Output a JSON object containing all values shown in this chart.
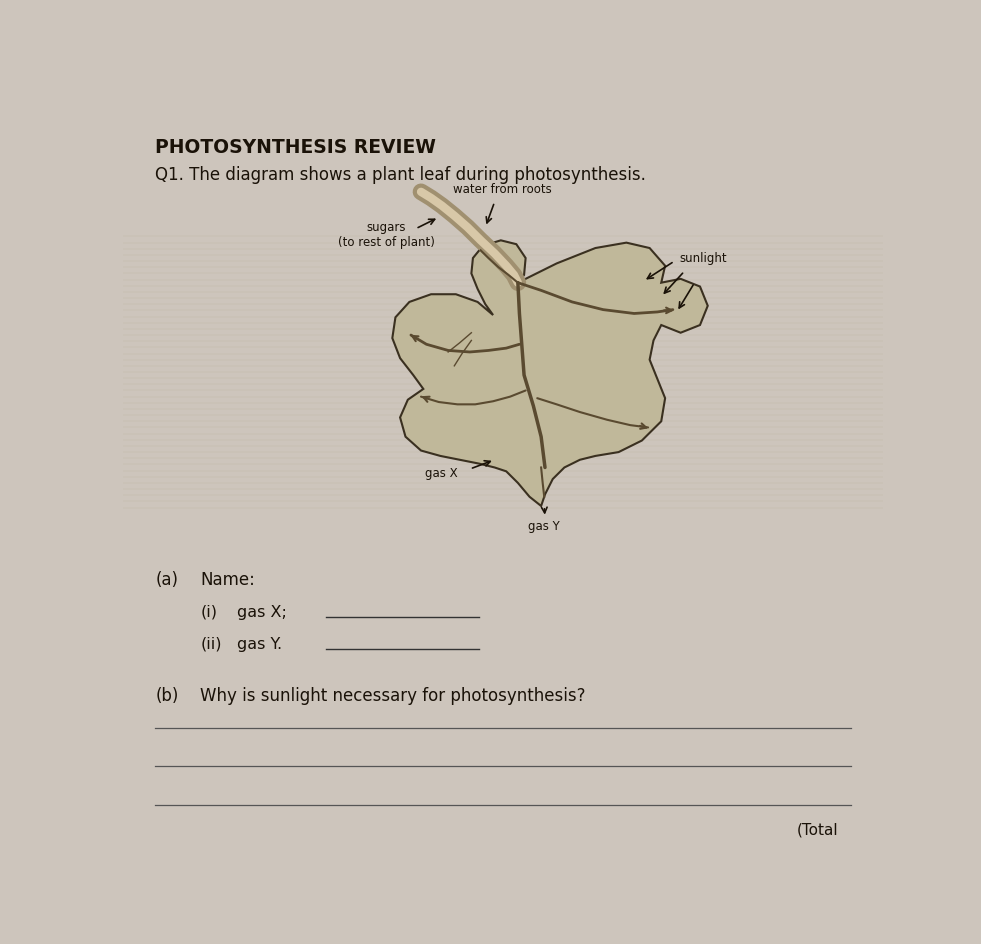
{
  "bg_color": "#cdc5bc",
  "title": "PHOTOSYNTHESIS REVIEW",
  "q1_text": "Q1. The diagram shows a plant leaf during photosynthesis.",
  "a_label": "(a)",
  "a_text": "Name:",
  "i_label": "(i)",
  "i_text": "gas X;",
  "ii_label": "(ii)",
  "ii_text": "gas Y.",
  "b_label": "(b)",
  "b_text": "Why is sunlight necessary for photosynthesis?",
  "total_text": "(Total",
  "leaf_color": "#c0b89a",
  "leaf_edge_color": "#3a3020",
  "stem_outer_color": "#a09070",
  "stem_inner_color": "#d8c8a8",
  "vein_color": "#5a4a30",
  "label_water": "water from roots",
  "label_sugars": "sugars\n(to rest of plant)",
  "label_sunlight": "sunlight",
  "label_gasX": "gas X",
  "label_gasY": "gas Y",
  "text_color": "#1a1208",
  "arrow_color": "#1a1208"
}
